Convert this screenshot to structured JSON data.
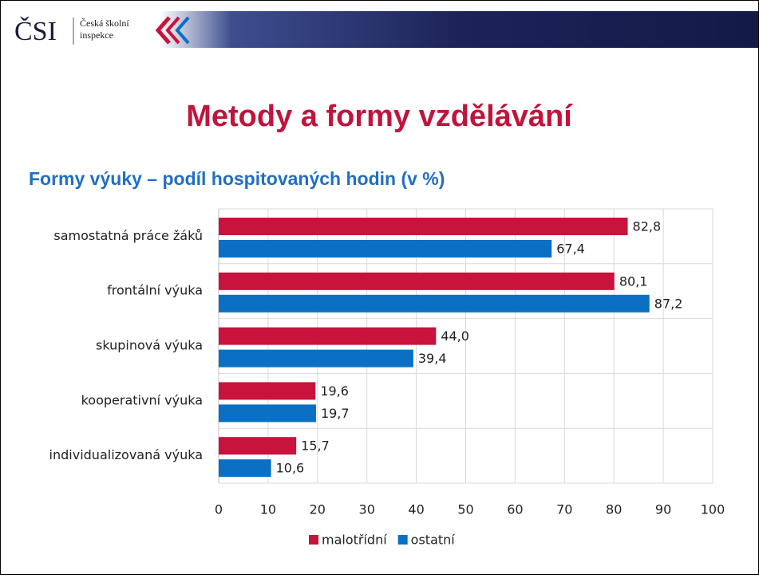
{
  "header": {
    "logo": "ČSI",
    "org": [
      "Česká školní",
      "inspekce"
    ]
  },
  "title": "Metody a formy vzdělávání",
  "chart_data": {
    "type": "hbar",
    "title": "Formy výuky – podíl hospitovaných hodin (v %)",
    "categories": [
      "samostatná práce žáků",
      "frontální výuka",
      "skupinová výuka",
      "kooperativní výuka",
      "individualizovaná výuka"
    ],
    "series": [
      {
        "name": "malotřídní",
        "color": "#c8133c",
        "values": [
          82.8,
          80.1,
          44.0,
          19.6,
          15.7
        ],
        "value_labels": [
          "82,8",
          "80,1",
          "44,0",
          "19,6",
          "15,7"
        ]
      },
      {
        "name": "ostatní",
        "color": "#0b6fc4",
        "values": [
          67.4,
          87.2,
          39.4,
          19.7,
          10.6
        ],
        "value_labels": [
          "67,4",
          "87,2",
          "39,4",
          "19,7",
          "10,6"
        ]
      }
    ],
    "xlim": [
      0,
      100
    ],
    "xticks": [
      0,
      10,
      20,
      30,
      40,
      50,
      60,
      70,
      80,
      90,
      100
    ],
    "grid": true,
    "legend": "bottom"
  }
}
